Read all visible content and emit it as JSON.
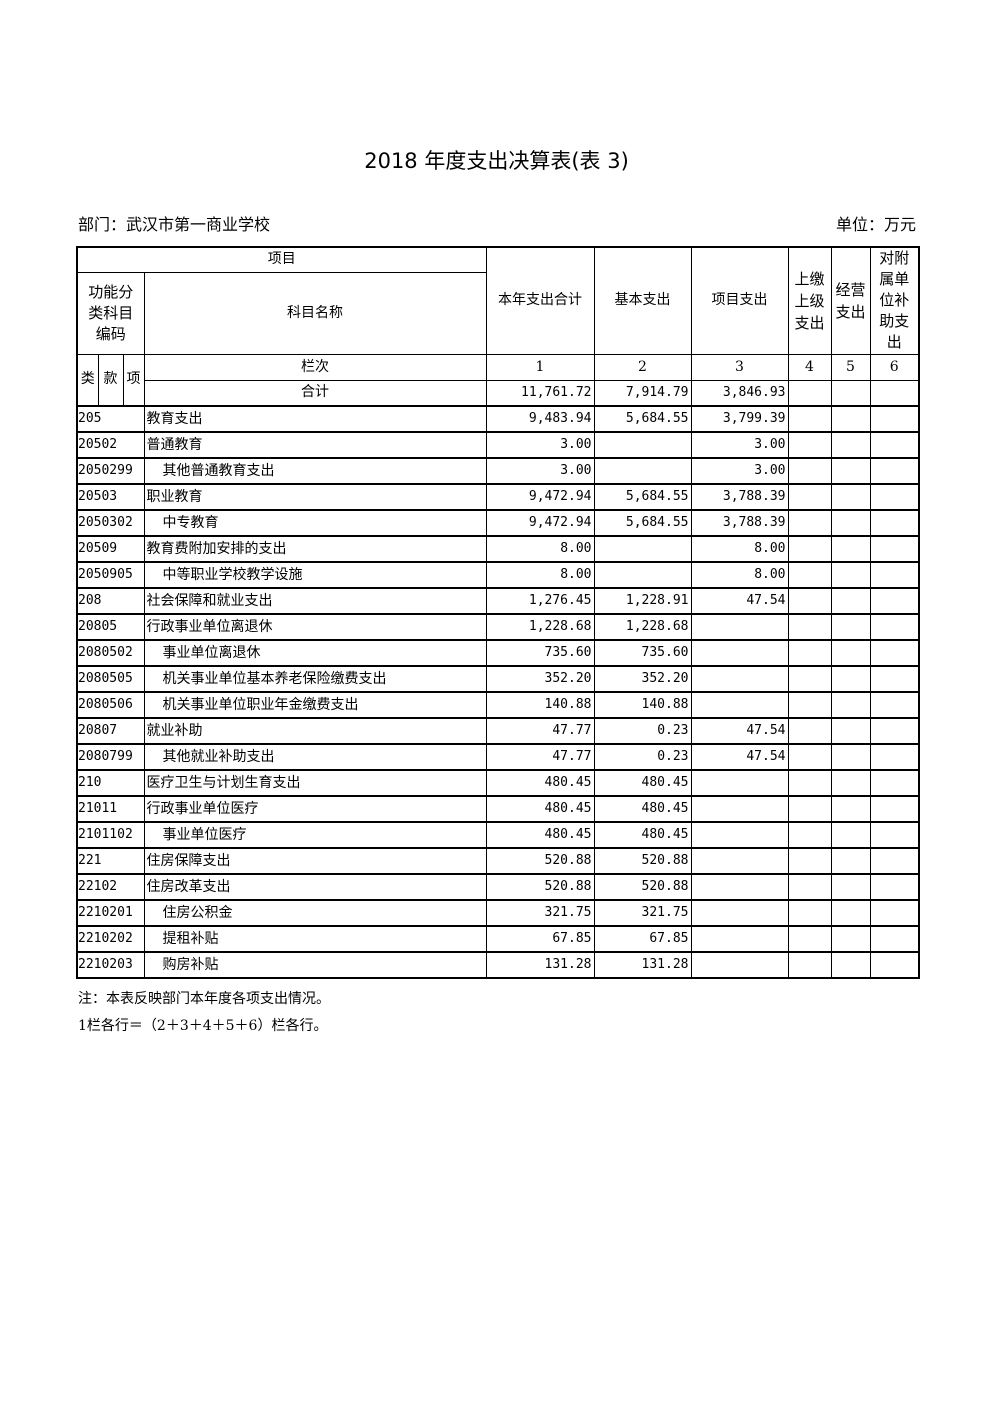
{
  "title": "2018 年度支出决算表(表 3)",
  "department": "部门：武汉市第一商业学校",
  "unit": "单位：万元",
  "header": {
    "project": "项目",
    "func_code": "功能分类科目编码",
    "subject_name": "科目名称",
    "col_total": "本年支出合计",
    "col_basic": "基本支出",
    "col_project": "项目支出",
    "col_upper": "上缴上级支出",
    "col_business": "经营支出",
    "col_subsidy": "对附属单位补助支出",
    "lei": "类",
    "kuan": "款",
    "xiang": "项",
    "lanci": "栏次",
    "nums": [
      "1",
      "2",
      "3",
      "4",
      "5",
      "6"
    ],
    "sum_label": "合计",
    "sum": [
      "11,761.72",
      "7,914.79",
      "3,846.93",
      "",
      "",
      ""
    ]
  },
  "rows": [
    {
      "code": "205",
      "name": "教育支出",
      "indent": false,
      "v": [
        "9,483.94",
        "5,684.55",
        "3,799.39",
        "",
        "",
        ""
      ]
    },
    {
      "code": "20502",
      "name": "普通教育",
      "indent": false,
      "v": [
        "3.00",
        "",
        "3.00",
        "",
        "",
        ""
      ]
    },
    {
      "code": "2050299",
      "name": "其他普通教育支出",
      "indent": true,
      "v": [
        "3.00",
        "",
        "3.00",
        "",
        "",
        ""
      ]
    },
    {
      "code": "20503",
      "name": "职业教育",
      "indent": false,
      "v": [
        "9,472.94",
        "5,684.55",
        "3,788.39",
        "",
        "",
        ""
      ]
    },
    {
      "code": "2050302",
      "name": "中专教育",
      "indent": true,
      "v": [
        "9,472.94",
        "5,684.55",
        "3,788.39",
        "",
        "",
        ""
      ]
    },
    {
      "code": "20509",
      "name": "教育费附加安排的支出",
      "indent": false,
      "v": [
        "8.00",
        "",
        "8.00",
        "",
        "",
        ""
      ]
    },
    {
      "code": "2050905",
      "name": "中等职业学校教学设施",
      "indent": true,
      "v": [
        "8.00",
        "",
        "8.00",
        "",
        "",
        ""
      ]
    },
    {
      "code": "208",
      "name": "社会保障和就业支出",
      "indent": false,
      "v": [
        "1,276.45",
        "1,228.91",
        "47.54",
        "",
        "",
        ""
      ]
    },
    {
      "code": "20805",
      "name": "行政事业单位离退休",
      "indent": false,
      "v": [
        "1,228.68",
        "1,228.68",
        "",
        "",
        "",
        ""
      ]
    },
    {
      "code": "2080502",
      "name": "事业单位离退休",
      "indent": true,
      "v": [
        "735.60",
        "735.60",
        "",
        "",
        "",
        ""
      ]
    },
    {
      "code": "2080505",
      "name": "机关事业单位基本养老保险缴费支出",
      "indent": true,
      "v": [
        "352.20",
        "352.20",
        "",
        "",
        "",
        ""
      ]
    },
    {
      "code": "2080506",
      "name": "机关事业单位职业年金缴费支出",
      "indent": true,
      "v": [
        "140.88",
        "140.88",
        "",
        "",
        "",
        ""
      ]
    },
    {
      "code": "20807",
      "name": "就业补助",
      "indent": false,
      "v": [
        "47.77",
        "0.23",
        "47.54",
        "",
        "",
        ""
      ]
    },
    {
      "code": "2080799",
      "name": "其他就业补助支出",
      "indent": true,
      "v": [
        "47.77",
        "0.23",
        "47.54",
        "",
        "",
        ""
      ]
    },
    {
      "code": "210",
      "name": "医疗卫生与计划生育支出",
      "indent": false,
      "v": [
        "480.45",
        "480.45",
        "",
        "",
        "",
        ""
      ]
    },
    {
      "code": "21011",
      "name": "行政事业单位医疗",
      "indent": false,
      "v": [
        "480.45",
        "480.45",
        "",
        "",
        "",
        ""
      ]
    },
    {
      "code": "2101102",
      "name": "事业单位医疗",
      "indent": true,
      "v": [
        "480.45",
        "480.45",
        "",
        "",
        "",
        ""
      ]
    },
    {
      "code": "221",
      "name": "住房保障支出",
      "indent": false,
      "v": [
        "520.88",
        "520.88",
        "",
        "",
        "",
        ""
      ]
    },
    {
      "code": "22102",
      "name": "住房改革支出",
      "indent": false,
      "v": [
        "520.88",
        "520.88",
        "",
        "",
        "",
        ""
      ]
    },
    {
      "code": "2210201",
      "name": "住房公积金",
      "indent": true,
      "v": [
        "321.75",
        "321.75",
        "",
        "",
        "",
        ""
      ]
    },
    {
      "code": "2210202",
      "name": "提租补贴",
      "indent": true,
      "v": [
        "67.85",
        "67.85",
        "",
        "",
        "",
        ""
      ]
    },
    {
      "code": "2210203",
      "name": "购房补贴",
      "indent": true,
      "v": [
        "131.28",
        "131.28",
        "",
        "",
        "",
        ""
      ]
    }
  ],
  "notes": [
    "注：本表反映部门本年度各项支出情况。",
    "1栏各行＝（2＋3＋4＋5＋6）栏各行。"
  ]
}
